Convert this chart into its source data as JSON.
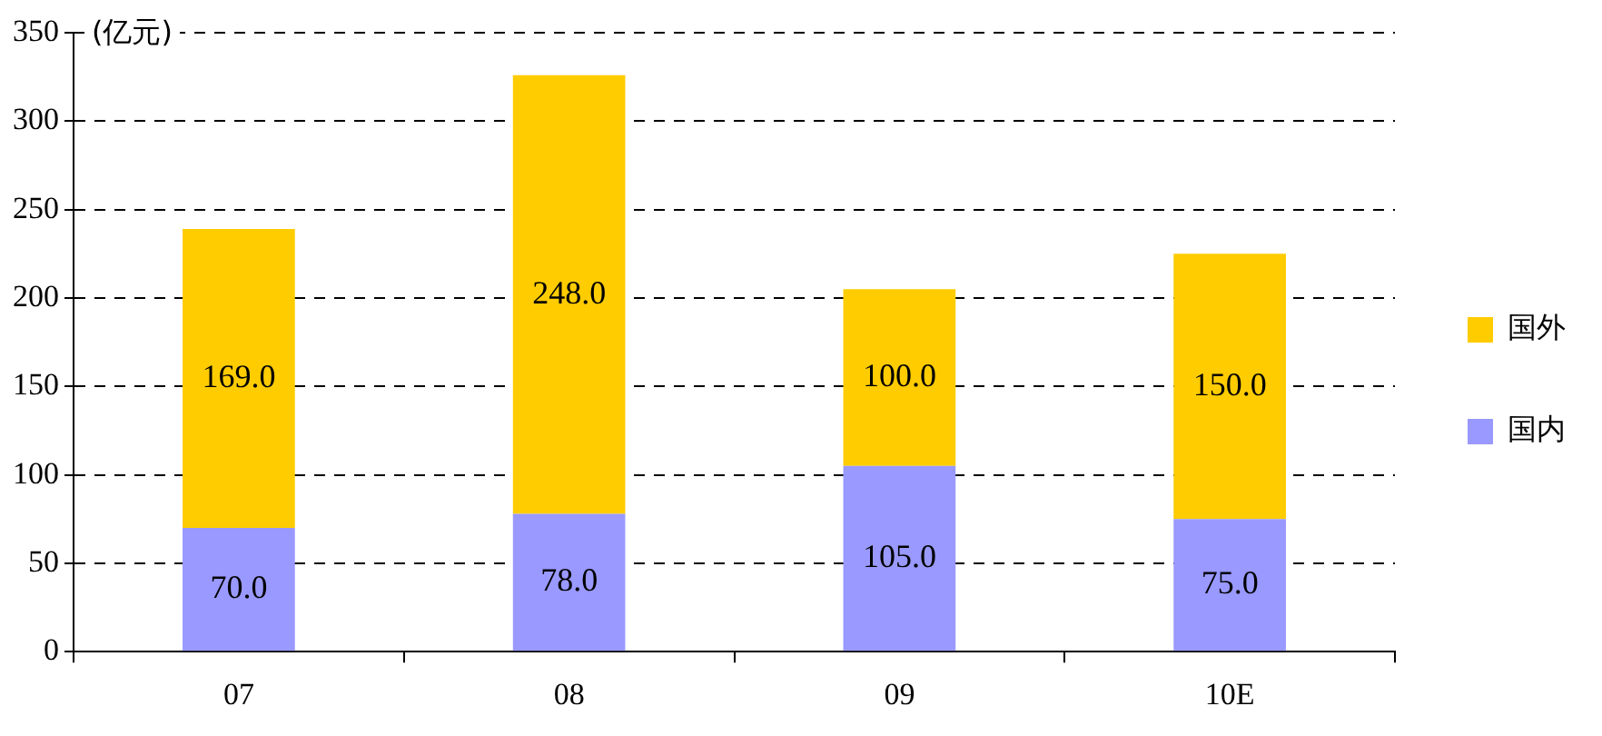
{
  "chart_data": {
    "type": "bar",
    "stacked": true,
    "ylabel": "(亿元)",
    "categories": [
      "07",
      "08",
      "09",
      "10E"
    ],
    "series": [
      {
        "name": "国内",
        "color": "#9999ff",
        "values": [
          70,
          78,
          105,
          75
        ],
        "value_labels": [
          "70.0",
          "78.0",
          "105.0",
          "75.0"
        ]
      },
      {
        "name": "国外",
        "color": "#ffcc00",
        "values": [
          169,
          248,
          100,
          150
        ],
        "value_labels": [
          "169.0",
          "248.0",
          "100.0",
          "150.0"
        ]
      }
    ],
    "ylim": [
      0,
      350
    ],
    "yticks": [
      0,
      50,
      100,
      150,
      200,
      250,
      300,
      350
    ],
    "grid": "y",
    "legend": "right"
  }
}
